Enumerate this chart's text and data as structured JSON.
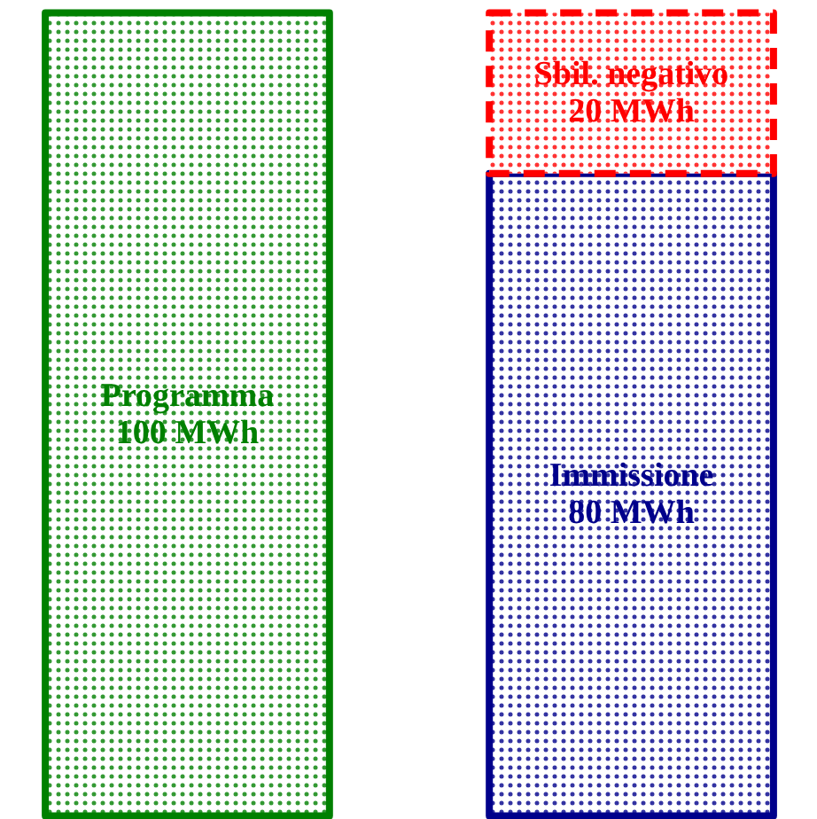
{
  "chart_data": {
    "type": "bar",
    "stacked": true,
    "categories": [
      null,
      null
    ],
    "series": [
      {
        "name": "Programma",
        "color": "#008000",
        "values": [
          100,
          null
        ],
        "value_labels": [
          "100 MWh",
          null
        ],
        "line_style": "solid"
      },
      {
        "name": "Immissione",
        "color": "#00008b",
        "values": [
          null,
          80
        ],
        "value_labels": [
          null,
          "80 MWh"
        ],
        "line_style": "solid"
      },
      {
        "name": "Sbil. negativo",
        "color": "#ff0000",
        "values": [
          null,
          20
        ],
        "value_labels": [
          null,
          "20 MWh"
        ],
        "line_style": "dashed"
      }
    ]
  }
}
